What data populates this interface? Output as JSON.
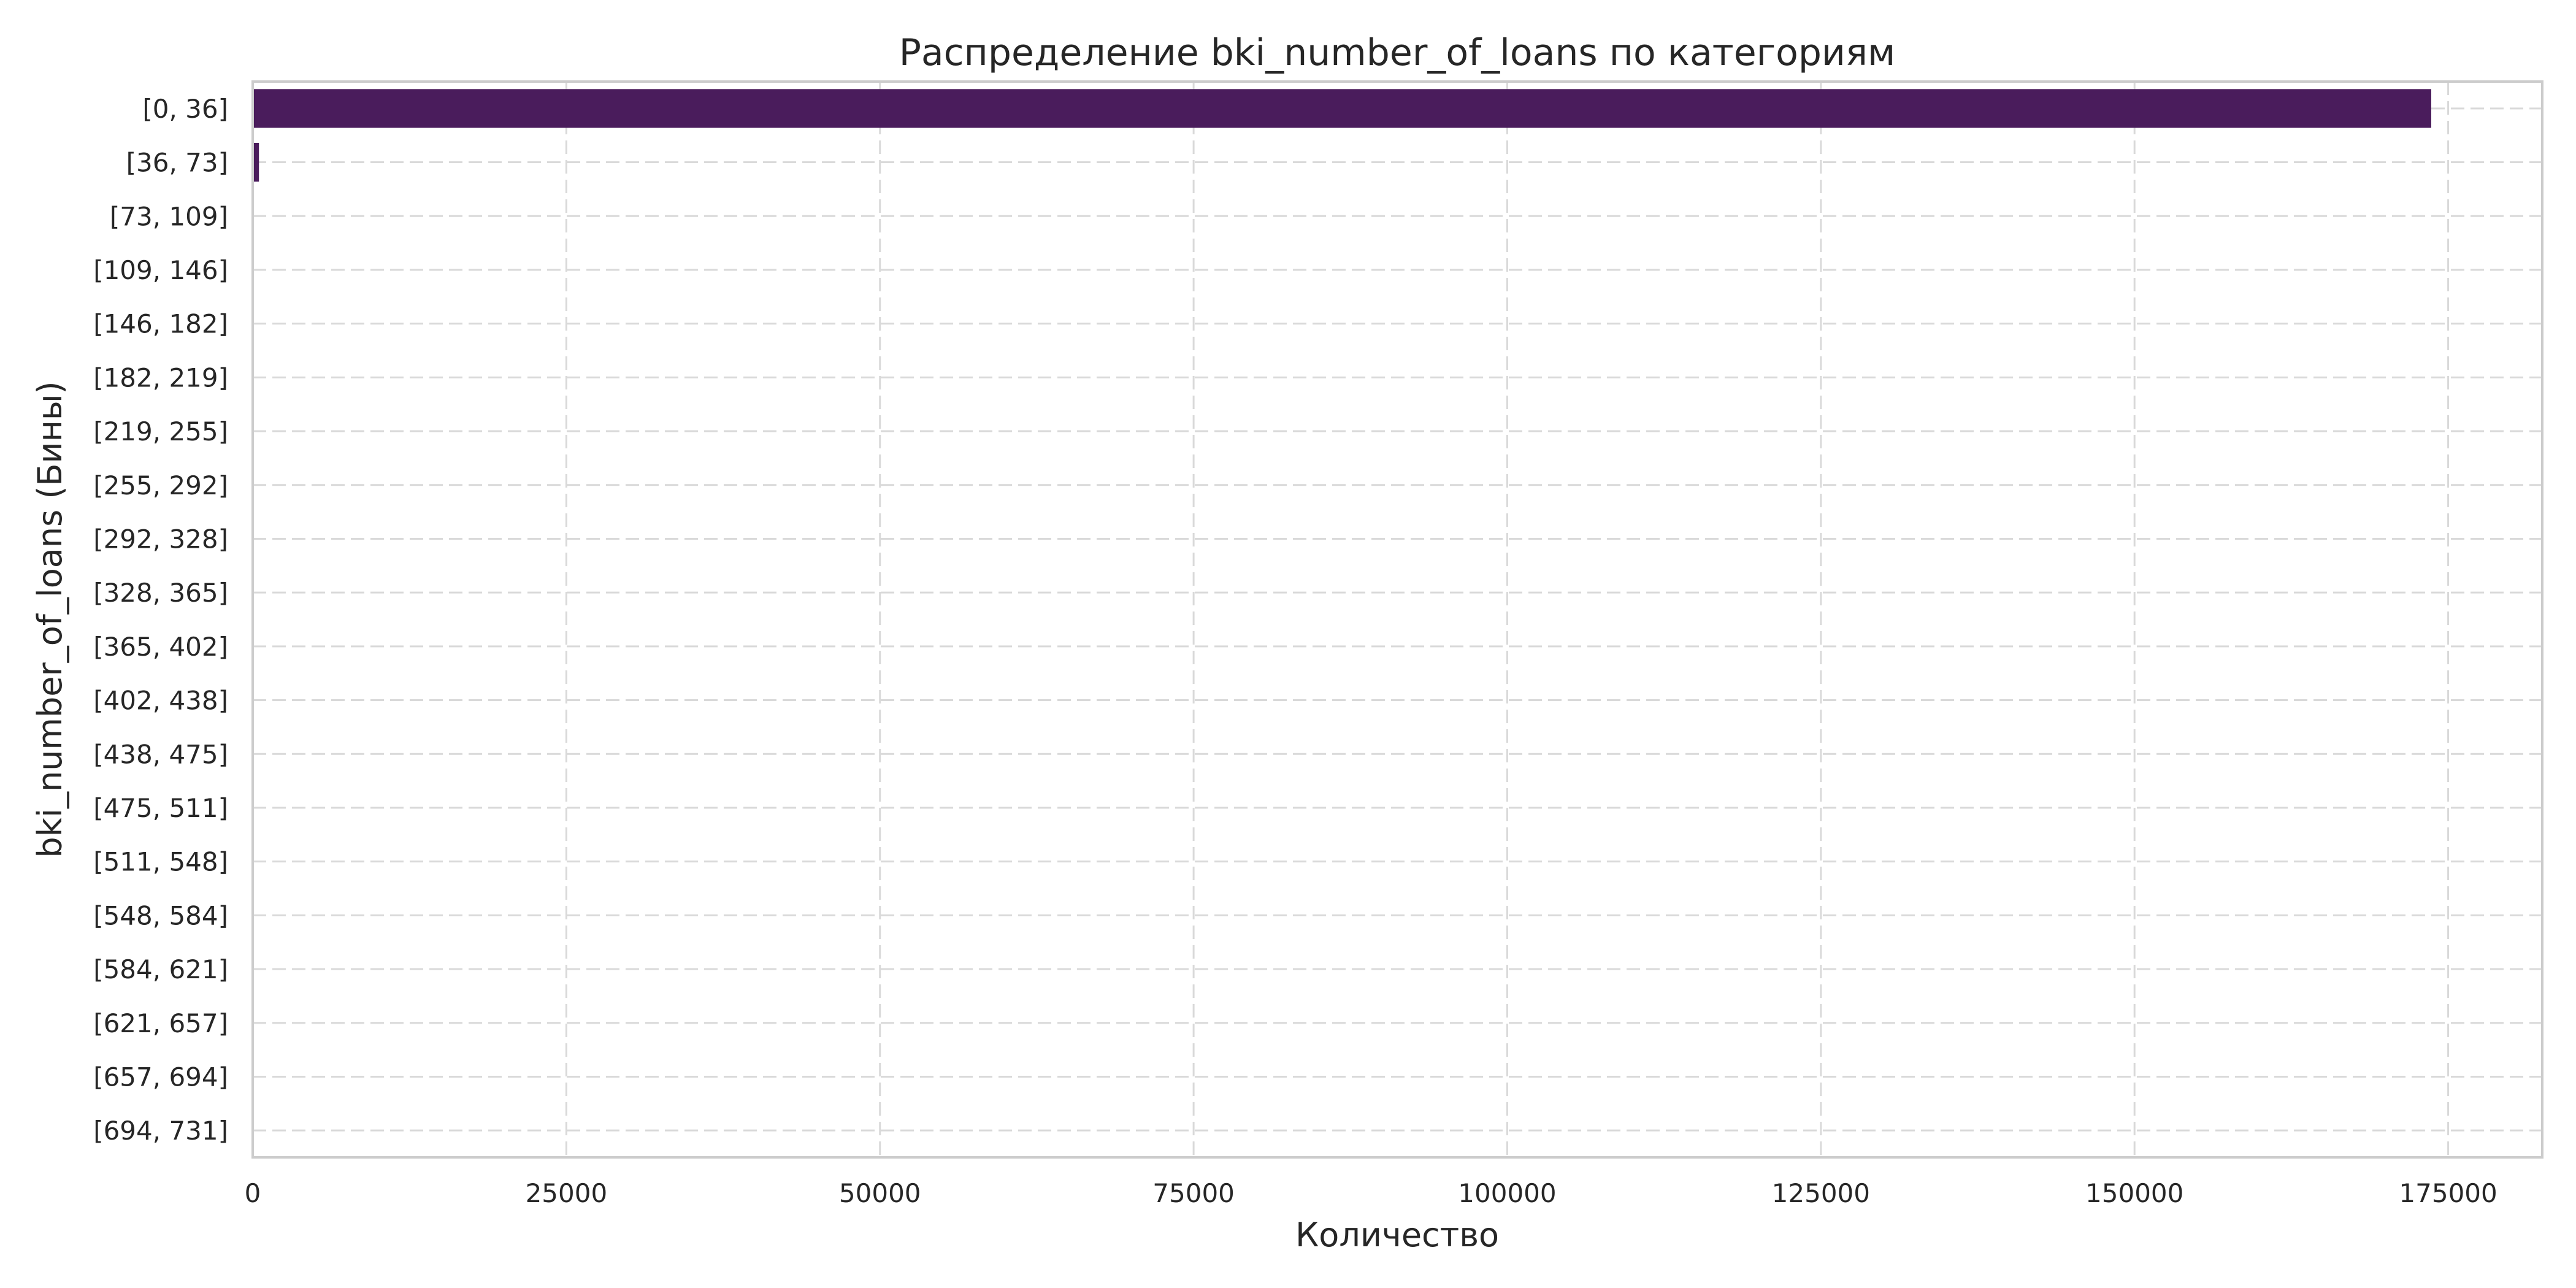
{
  "chart_data": {
    "type": "bar",
    "orientation": "horizontal",
    "title": "Распределение bki_number_of_loans по категориям",
    "xlabel": "Количество",
    "ylabel": "bki_number_of_loans (Бины)",
    "categories": [
      "[0, 36]",
      "[36, 73]",
      "[73, 109]",
      "[109, 146]",
      "[146, 182]",
      "[182, 219]",
      "[219, 255]",
      "[255, 292]",
      "[292, 328]",
      "[328, 365]",
      "[365, 402]",
      "[402, 438]",
      "[438, 475]",
      "[475, 511]",
      "[511, 548]",
      "[548, 584]",
      "[584, 621]",
      "[621, 657]",
      "[657, 694]",
      "[694, 731]"
    ],
    "values": [
      173600,
      450,
      0,
      0,
      0,
      0,
      0,
      0,
      0,
      0,
      0,
      0,
      0,
      0,
      0,
      0,
      0,
      0,
      0,
      0
    ],
    "xlim": [
      0,
      182500
    ],
    "xticks": [
      0,
      25000,
      50000,
      75000,
      100000,
      125000,
      150000,
      175000
    ],
    "grid": true,
    "bar_color": "#4a1c5c"
  }
}
